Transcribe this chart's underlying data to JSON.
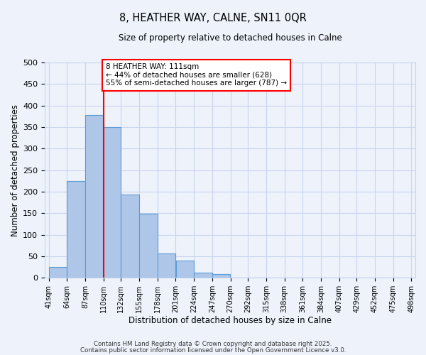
{
  "title": "8, HEATHER WAY, CALNE, SN11 0QR",
  "subtitle": "Size of property relative to detached houses in Calne",
  "xlabel": "Distribution of detached houses by size in Calne",
  "ylabel": "Number of detached properties",
  "bar_left_edges": [
    41,
    64,
    87,
    110,
    132,
    155,
    178,
    201,
    224,
    247,
    270,
    292,
    315,
    338,
    361,
    384,
    407,
    429,
    452,
    475
  ],
  "bar_widths": [
    23,
    23,
    23,
    22,
    23,
    23,
    23,
    23,
    23,
    23,
    22,
    23,
    23,
    23,
    23,
    23,
    22,
    23,
    23,
    23
  ],
  "bar_heights": [
    25,
    225,
    378,
    350,
    193,
    148,
    57,
    40,
    12,
    8,
    0,
    0,
    0,
    0,
    0,
    0,
    0,
    0,
    0,
    0
  ],
  "tick_labels": [
    "41sqm",
    "64sqm",
    "87sqm",
    "110sqm",
    "132sqm",
    "155sqm",
    "178sqm",
    "201sqm",
    "224sqm",
    "247sqm",
    "270sqm",
    "292sqm",
    "315sqm",
    "338sqm",
    "361sqm",
    "384sqm",
    "407sqm",
    "429sqm",
    "452sqm",
    "475sqm",
    "498sqm"
  ],
  "tick_positions": [
    41,
    64,
    87,
    110,
    132,
    155,
    178,
    201,
    224,
    247,
    270,
    292,
    315,
    338,
    361,
    384,
    407,
    429,
    452,
    475,
    498
  ],
  "bar_color": "#aec6e8",
  "bar_edge_color": "#5b9bd5",
  "vline_x": 110,
  "vline_color": "red",
  "ylim": [
    0,
    500
  ],
  "yticks": [
    0,
    50,
    100,
    150,
    200,
    250,
    300,
    350,
    400,
    450,
    500
  ],
  "annotation_text": "8 HEATHER WAY: 111sqm\n← 44% of detached houses are smaller (628)\n55% of semi-detached houses are larger (787) →",
  "annotation_box_color": "#ffffff",
  "annotation_box_edge_color": "red",
  "footer_line1": "Contains HM Land Registry data © Crown copyright and database right 2025.",
  "footer_line2": "Contains public sector information licensed under the Open Government Licence v3.0.",
  "bg_color": "#eef2fb",
  "grid_color": "#c8d4ee",
  "xlim_left": 41,
  "xlim_right": 498
}
